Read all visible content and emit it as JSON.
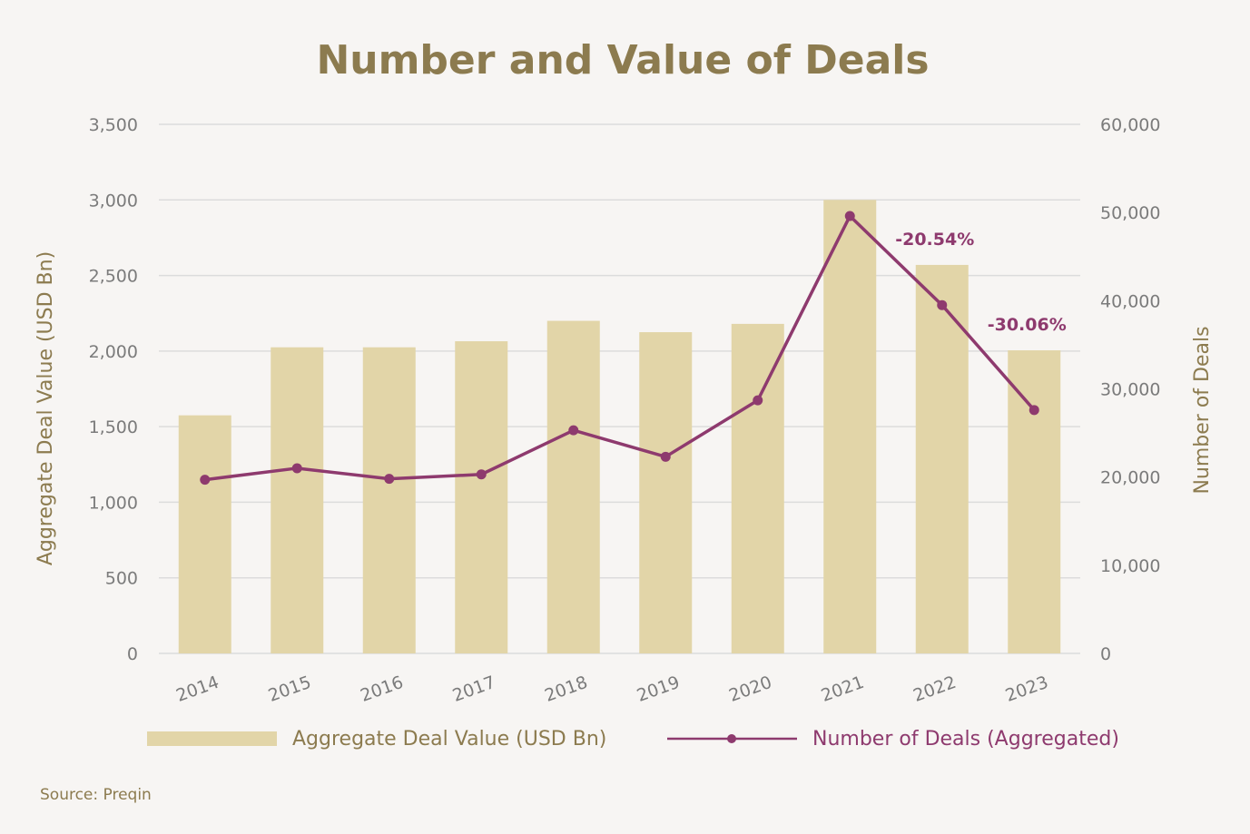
{
  "colors": {
    "background": "#f7f5f3",
    "title": "#8c7b4f",
    "bar": "#e2d5a8",
    "line": "#8e3a6e",
    "grid": "#dcdcdc",
    "tick": "#7b7b7b",
    "axis_title": "#8c7b4f"
  },
  "chart_data": {
    "type": "bar",
    "title": "Number and Value of Deals",
    "categories": [
      "2014",
      "2015",
      "2016",
      "2017",
      "2018",
      "2019",
      "2020",
      "2021",
      "2022",
      "2023"
    ],
    "series": [
      {
        "name": "Aggregate Deal Value (USD Bn)",
        "type": "bar",
        "axis": "left",
        "values": [
          1575,
          2025,
          2025,
          2065,
          2200,
          2125,
          2180,
          3000,
          2570,
          2005
        ]
      },
      {
        "name": "Number of Deals (Aggregated)",
        "type": "line",
        "axis": "right",
        "values": [
          19700,
          21000,
          19800,
          20300,
          25300,
          22300,
          28700,
          49600,
          39500,
          27600
        ]
      }
    ],
    "ylabel": "Aggregate Deal Value (USD Bn)",
    "ylabel_right": "Number of Deals",
    "ylim": [
      0,
      3500
    ],
    "ylim_right": [
      0,
      60000
    ],
    "yticks": [
      "0",
      "500",
      "1,000",
      "1,500",
      "2,000",
      "2,500",
      "3,000",
      "3,500"
    ],
    "yticks_right": [
      "0",
      "10,000",
      "20,000",
      "30,000",
      "40,000",
      "50,000",
      "60,000"
    ],
    "grid": true,
    "legend_position": "bottom",
    "annotations": [
      {
        "category": "2022",
        "text": "-20.54%"
      },
      {
        "category": "2023",
        "text": "-30.06%"
      }
    ]
  },
  "source": "Source: Preqin"
}
